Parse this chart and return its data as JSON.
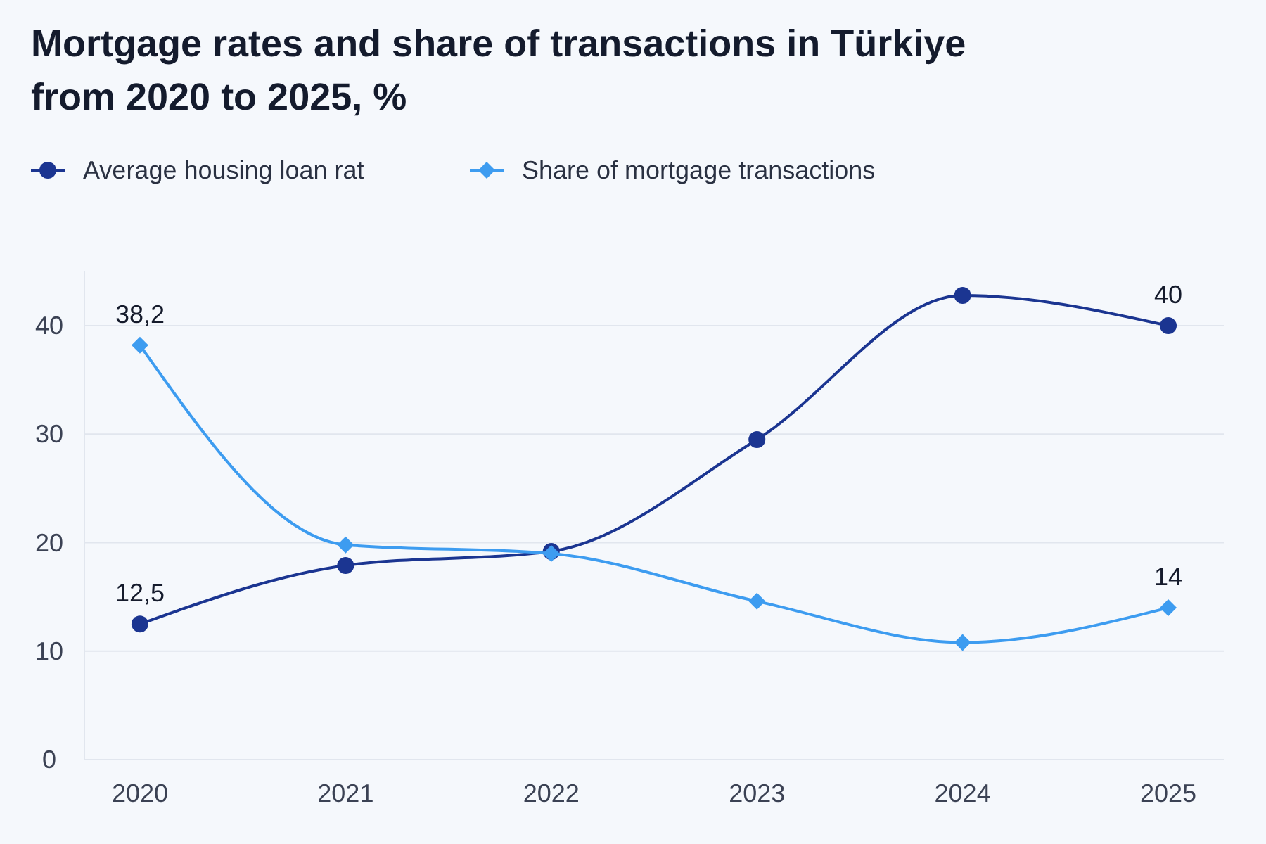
{
  "chart_data": {
    "type": "line",
    "title": "Mortgage rates and share of transactions in Türkiye from 2020 to 2025, %",
    "categories": [
      "2020",
      "2021",
      "2022",
      "2023",
      "2024",
      "2025"
    ],
    "series": [
      {
        "name": "Average housing loan rat",
        "color": "#1b3591",
        "marker": "circle",
        "values": [
          12.5,
          17.9,
          19.2,
          29.5,
          42.8,
          40
        ],
        "value_labels": [
          "12,5",
          null,
          null,
          null,
          null,
          "40"
        ]
      },
      {
        "name": "Share of mortgage transactions",
        "color": "#3d9cf0",
        "marker": "diamond",
        "values": [
          38.2,
          19.8,
          19.0,
          14.6,
          10.8,
          14
        ],
        "value_labels": [
          "38,2",
          null,
          null,
          null,
          null,
          "14"
        ]
      }
    ],
    "ylim": [
      0,
      45
    ],
    "yticks": [
      0,
      10,
      20,
      30,
      40
    ],
    "grid": "y",
    "legend": "top left"
  }
}
